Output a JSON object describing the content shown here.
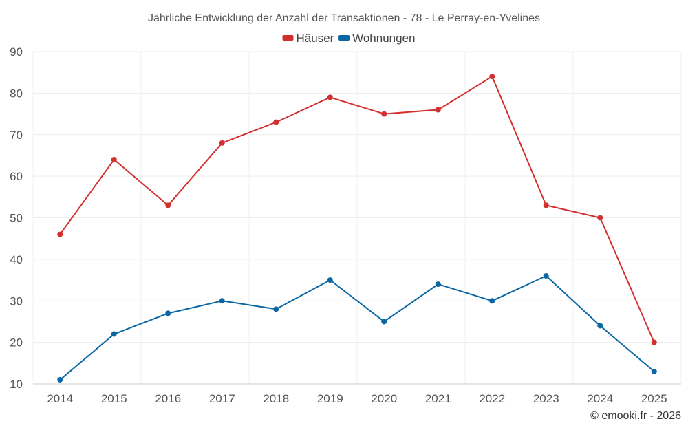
{
  "chart_data": {
    "type": "line",
    "title": "Jährliche Entwicklung der Anzahl der Transaktionen - 78 - Le Perray-en-Yvelines",
    "categories": [
      "2014",
      "2015",
      "2016",
      "2017",
      "2018",
      "2019",
      "2020",
      "2021",
      "2022",
      "2023",
      "2024",
      "2025"
    ],
    "series": [
      {
        "name": "Häuser",
        "color": "#d32f2f",
        "values": [
          46,
          64,
          53,
          68,
          73,
          79,
          75,
          76,
          84,
          53,
          50,
          20
        ]
      },
      {
        "name": "Wohnungen",
        "color": "#0a67a3",
        "values": [
          11,
          22,
          27,
          30,
          28,
          35,
          25,
          34,
          30,
          36,
          24,
          13
        ]
      }
    ],
    "ylim": [
      10,
      90
    ],
    "yticks": [
      10,
      20,
      30,
      40,
      50,
      60,
      70,
      80,
      90
    ],
    "legend_position": "top-center",
    "grid": true,
    "xlabel": "",
    "ylabel": ""
  },
  "credit": "© emooki.fr - 2026"
}
